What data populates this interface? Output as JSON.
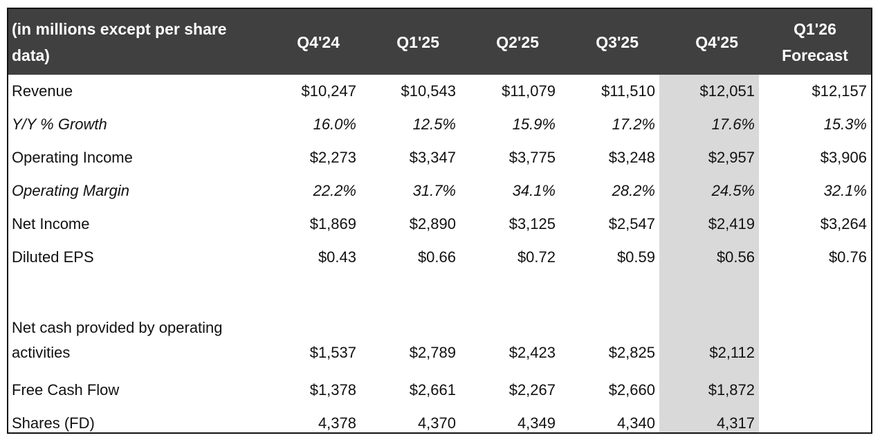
{
  "header": {
    "label": "(in millions except per share data)",
    "columns": [
      "Q4'24",
      "Q1'25",
      "Q2'25",
      "Q3'25",
      "Q4'25"
    ],
    "forecast_line1": "Q1'26",
    "forecast_line2": "Forecast"
  },
  "colors": {
    "header_bg": "#404040",
    "highlight_column": "#d9d9d9"
  },
  "rows": [
    {
      "label": "Revenue",
      "values": [
        "$10,247",
        "$10,543",
        "$11,079",
        "$11,510",
        "$12,051",
        "$12,157"
      ]
    },
    {
      "label": "Y/Y % Growth",
      "values": [
        "16.0%",
        "12.5%",
        "15.9%",
        "17.2%",
        "17.6%",
        "15.3%"
      ]
    },
    {
      "label": "Operating Income",
      "values": [
        "$2,273",
        "$3,347",
        "$3,775",
        "$3,248",
        "$2,957",
        "$3,906"
      ]
    },
    {
      "label": "Operating Margin",
      "values": [
        "22.2%",
        "31.7%",
        "34.1%",
        "28.2%",
        "24.5%",
        "32.1%"
      ]
    },
    {
      "label": "Net Income",
      "values": [
        "$1,869",
        "$2,890",
        "$3,125",
        "$2,547",
        "$2,419",
        "$3,264"
      ]
    },
    {
      "label": "Diluted EPS",
      "values": [
        "$0.43",
        "$0.66",
        "$0.72",
        "$0.59",
        "$0.56",
        "$0.76"
      ]
    },
    {
      "label": "Net cash provided by operating activities",
      "values": [
        "$1,537",
        "$2,789",
        "$2,423",
        "$2,825",
        "$2,112",
        ""
      ]
    },
    {
      "label": "Free Cash Flow",
      "values": [
        "$1,378",
        "$2,661",
        "$2,267",
        "$2,660",
        "$1,872",
        ""
      ]
    },
    {
      "label": "Shares (FD)",
      "values": [
        "4,378",
        "4,370",
        "4,349",
        "4,340",
        "4,317",
        ""
      ]
    }
  ]
}
